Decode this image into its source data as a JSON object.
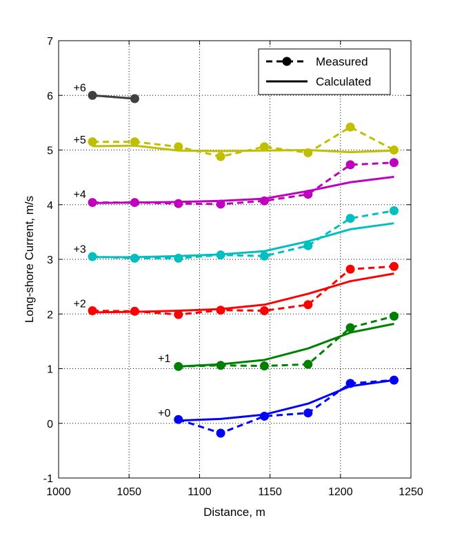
{
  "chart_data": {
    "type": "line",
    "xlabel": "Distance, m",
    "ylabel": "Long-shore Current, m/s",
    "xlim": [
      1000,
      1250
    ],
    "ylim": [
      -1,
      7
    ],
    "xticks": [
      1000,
      1050,
      1100,
      1150,
      1200,
      1250
    ],
    "yticks": [
      -1,
      0,
      1,
      2,
      3,
      4,
      5,
      6,
      7
    ],
    "grid": true,
    "legend": {
      "placement": "top-right",
      "entries": [
        {
          "label": "Measured",
          "style": "dashed-marker"
        },
        {
          "label": "Calculated",
          "style": "solid"
        }
      ]
    },
    "series": [
      {
        "label": "+0",
        "color": "#0000ff",
        "label_at": [
          1075,
          0.12
        ],
        "measured": {
          "x": [
            1085,
            1115,
            1146,
            1177,
            1207,
            1238
          ],
          "y": [
            0.07,
            -0.18,
            0.13,
            0.19,
            0.73,
            0.79
          ]
        },
        "calculated": {
          "x": [
            1085,
            1115,
            1146,
            1177,
            1207,
            1238
          ],
          "y": [
            0.05,
            0.08,
            0.16,
            0.36,
            0.68,
            0.79
          ]
        }
      },
      {
        "label": "+1",
        "color": "#008000",
        "label_at": [
          1075,
          1.12
        ],
        "measured": {
          "x": [
            1085,
            1115,
            1146,
            1177,
            1207,
            1238
          ],
          "y": [
            1.04,
            1.06,
            1.05,
            1.08,
            1.75,
            1.96
          ]
        },
        "calculated": {
          "x": [
            1085,
            1115,
            1146,
            1177,
            1207,
            1238
          ],
          "y": [
            1.04,
            1.08,
            1.16,
            1.37,
            1.66,
            1.82
          ]
        }
      },
      {
        "label": "+2",
        "color": "#ff0000",
        "label_at": [
          1015,
          2.12
        ],
        "measured": {
          "x": [
            1024,
            1054,
            1085,
            1115,
            1146,
            1177,
            1207,
            1238
          ],
          "y": [
            2.06,
            2.05,
            1.99,
            2.07,
            2.06,
            2.17,
            2.82,
            2.87
          ]
        },
        "calculated": {
          "x": [
            1024,
            1054,
            1085,
            1115,
            1146,
            1177,
            1207,
            1238
          ],
          "y": [
            2.03,
            2.04,
            2.06,
            2.09,
            2.17,
            2.37,
            2.6,
            2.74
          ]
        }
      },
      {
        "label": "+3",
        "color": "#00bfbf",
        "label_at": [
          1015,
          3.12
        ],
        "measured": {
          "x": [
            1024,
            1054,
            1085,
            1115,
            1146,
            1177,
            1207,
            1238
          ],
          "y": [
            3.05,
            3.02,
            3.02,
            3.08,
            3.06,
            3.25,
            3.75,
            3.89
          ]
        },
        "calculated": {
          "x": [
            1024,
            1054,
            1085,
            1115,
            1146,
            1177,
            1207,
            1238
          ],
          "y": [
            3.04,
            3.04,
            3.06,
            3.09,
            3.15,
            3.33,
            3.55,
            3.66
          ]
        }
      },
      {
        "label": "+4",
        "color": "#bf00bf",
        "label_at": [
          1015,
          4.12
        ],
        "measured": {
          "x": [
            1024,
            1054,
            1085,
            1115,
            1146,
            1177,
            1207,
            1238
          ],
          "y": [
            4.04,
            4.04,
            4.02,
            4.01,
            4.07,
            4.19,
            4.73,
            4.77
          ]
        },
        "calculated": {
          "x": [
            1024,
            1054,
            1085,
            1115,
            1146,
            1177,
            1207,
            1238
          ],
          "y": [
            4.03,
            4.04,
            4.05,
            4.07,
            4.11,
            4.25,
            4.41,
            4.51
          ]
        }
      },
      {
        "label": "+5",
        "color": "#bfbf00",
        "label_at": [
          1015,
          5.12
        ],
        "measured": {
          "x": [
            1024,
            1054,
            1085,
            1115,
            1146,
            1177,
            1207,
            1238
          ],
          "y": [
            5.15,
            5.15,
            5.06,
            4.88,
            5.06,
            4.95,
            5.42,
            5.0
          ]
        },
        "calculated": {
          "x": [
            1024,
            1054,
            1085,
            1115,
            1146,
            1177,
            1207,
            1238
          ],
          "y": [
            5.07,
            5.08,
            4.99,
            4.98,
            4.99,
            5.0,
            4.96,
            4.99
          ]
        }
      },
      {
        "label": "+6",
        "color": "#404040",
        "label_at": [
          1015,
          6.07
        ],
        "measured": {
          "x": [
            1024,
            1054
          ],
          "y": [
            6.0,
            5.94
          ]
        },
        "calculated": {
          "x": [
            1024,
            1054
          ],
          "y": [
            6.0,
            5.94
          ]
        }
      }
    ]
  }
}
